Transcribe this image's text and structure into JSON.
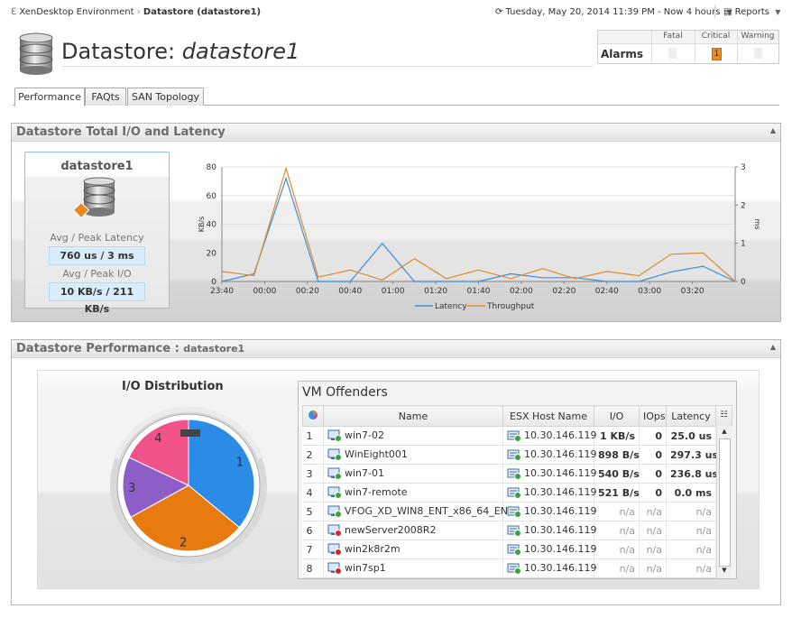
{
  "breadcrumb": {
    "parent": "XenDesktop Environment",
    "current": "Datastore (datastore1)"
  },
  "time_range": "Tuesday, May 20, 2014 11:39 PM - Now 4 hours",
  "reports": "Reports",
  "header": {
    "label": "Datastore:",
    "name": "datastore1"
  },
  "alarms": {
    "title": "Alarms",
    "columns": [
      "Fatal",
      "Critical",
      "Warning"
    ],
    "critical": 1
  },
  "tabs": [
    "Performance",
    "FAQts",
    "SAN Topology"
  ],
  "io_panel": {
    "title": "Datastore Total I/O and Latency",
    "card": {
      "name": "datastore1",
      "latency_label": "Avg / Peak Latency",
      "latency": "760 us / 3 ms",
      "io_label": "Avg / Peak I/O",
      "io": "10 KB/s / 211 KB/s"
    },
    "chart": {
      "type": "line",
      "ylabel": "KB/s",
      "y2label": "ms",
      "x": [
        "23:40",
        "23:55",
        "00:10",
        "00:25",
        "00:40",
        "00:55",
        "01:10",
        "01:25",
        "01:40",
        "01:55",
        "02:10",
        "02:25",
        "02:40",
        "02:55",
        "03:10",
        "03:25",
        "03:40"
      ],
      "xlim": [
        "23:40",
        "03:40"
      ],
      "xticks": [
        "23:40",
        "00:00",
        "00:20",
        "00:40",
        "01:00",
        "01:20",
        "01:40",
        "02:00",
        "02:20",
        "02:40",
        "03:00",
        "03:20"
      ],
      "ylim": [
        0,
        80
      ],
      "yticks": [
        0,
        20,
        40,
        60,
        80
      ],
      "y2lim": [
        0,
        3
      ],
      "y2ticks": [
        0,
        1,
        2,
        3
      ],
      "grid": true,
      "series": [
        {
          "name": "Latency",
          "color": "#3d8fdc",
          "axis": "y2",
          "values": [
            0,
            0.2,
            2.7,
            0,
            0,
            1.0,
            0,
            0,
            0,
            0.2,
            0.1,
            0.1,
            0,
            0,
            0.25,
            0.4,
            0
          ]
        },
        {
          "name": "Throughput",
          "color": "#df8a2e",
          "values": [
            7,
            4,
            79,
            3,
            8,
            1,
            16,
            2,
            8,
            2,
            9,
            2,
            7,
            4,
            19,
            20,
            0
          ]
        }
      ]
    }
  },
  "perf_panel": {
    "title": "Datastore Performance :",
    "subject": "datastore1",
    "pie": {
      "type": "pie",
      "title": "I/O Distribution",
      "categories": [
        "1",
        "2",
        "3",
        "4"
      ],
      "values": [
        36,
        31,
        15,
        18
      ],
      "colors": [
        "#2b8be6",
        "#e77b10",
        "#8e5ec8",
        "#f2528a"
      ]
    },
    "offenders": {
      "title": "VM Offenders",
      "columns": [
        "Name",
        "ESX Host Name",
        "I/O",
        "IOps",
        "Latency"
      ],
      "rows": [
        [
          1,
          "win7-02",
          "10.30.146.119",
          "1 KB/s",
          0,
          "25.0 us"
        ],
        [
          2,
          "WinEight001",
          "10.30.146.119",
          "898 B/s",
          0,
          "297.3 us"
        ],
        [
          3,
          "win7-01",
          "10.30.146.119",
          "540 B/s",
          0,
          "236.8 us"
        ],
        [
          4,
          "win7-remote",
          "10.30.146.119",
          "521 B/s",
          0,
          "0.0 ms"
        ],
        [
          5,
          "VFOG_XD_WIN8_ENT_x86_64_EN",
          "10.30.146.119",
          "n/a",
          "n/a",
          "n/a"
        ],
        [
          6,
          "newServer2008R2",
          "10.30.146.119",
          "n/a",
          "n/a",
          "n/a"
        ],
        [
          7,
          "win2k8r2m",
          "10.30.146.119",
          "n/a",
          "n/a",
          "n/a"
        ],
        [
          8,
          "win7sp1",
          "10.30.146.119",
          "n/a",
          "n/a",
          "n/a"
        ]
      ]
    }
  }
}
